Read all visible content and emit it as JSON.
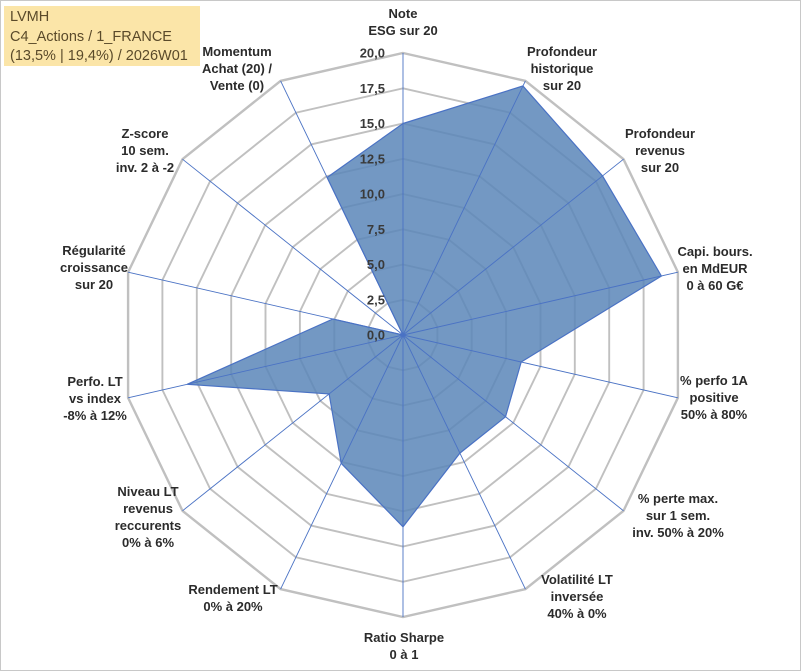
{
  "infobox": {
    "line1": "LVMH",
    "line2": "C4_Actions / 1_FRANCE",
    "line3": "(13,5% | 19,4%) / 2026W01"
  },
  "colors": {
    "area_fill": "#5b86b8",
    "area_stroke": "#4a72c4",
    "grid": "#c0c0c0",
    "spoke": "#4a72c4",
    "infobox_bg": "#fbe5a8"
  },
  "chart_data": {
    "type": "radar",
    "title": "",
    "rmax": 20,
    "ticks": [
      "0,0",
      "2,5",
      "5,0",
      "7,5",
      "10,0",
      "12,5",
      "15,0",
      "17,5",
      "20,0"
    ],
    "axes": [
      {
        "lines": [
          "Note",
          "ESG sur 20"
        ]
      },
      {
        "lines": [
          "Profondeur",
          "historique",
          "sur 20"
        ]
      },
      {
        "lines": [
          "Profondeur",
          "revenus",
          "sur 20"
        ]
      },
      {
        "lines": [
          "Capi. bours.",
          "en MdEUR",
          "0 à 60 G€"
        ]
      },
      {
        "lines": [
          "% perfo 1A",
          "positive",
          "50% à 80%"
        ]
      },
      {
        "lines": [
          "% perte max.",
          "sur 1 sem.",
          "inv. 50% à 20%"
        ]
      },
      {
        "lines": [
          "Volatilité LT",
          "inversée",
          "40% à 0%"
        ]
      },
      {
        "lines": [
          "Ratio Sharpe",
          "0 à 1"
        ]
      },
      {
        "lines": [
          "Rendement LT",
          "0% à 20%"
        ]
      },
      {
        "lines": [
          "Niveau LT",
          "revenus",
          "reccurents",
          "0% à 6%"
        ]
      },
      {
        "lines": [
          "Perfo. LT",
          "vs index",
          "-8% à 12%"
        ]
      },
      {
        "lines": [
          "Régularité",
          "croissance",
          "sur 20"
        ]
      },
      {
        "lines": [
          "Z-score",
          "10 sem.",
          "inv. 2 à -2"
        ]
      },
      {
        "lines": [
          "Momentum",
          "Achat (20) /",
          "Vente (0)"
        ]
      }
    ],
    "series": [
      {
        "name": "LVMH",
        "values": [
          15.0,
          19.6,
          18.1,
          18.8,
          8.6,
          9.3,
          9.3,
          13.6,
          10.1,
          6.7,
          15.7,
          5.1,
          0.0,
          12.4
        ]
      }
    ]
  }
}
